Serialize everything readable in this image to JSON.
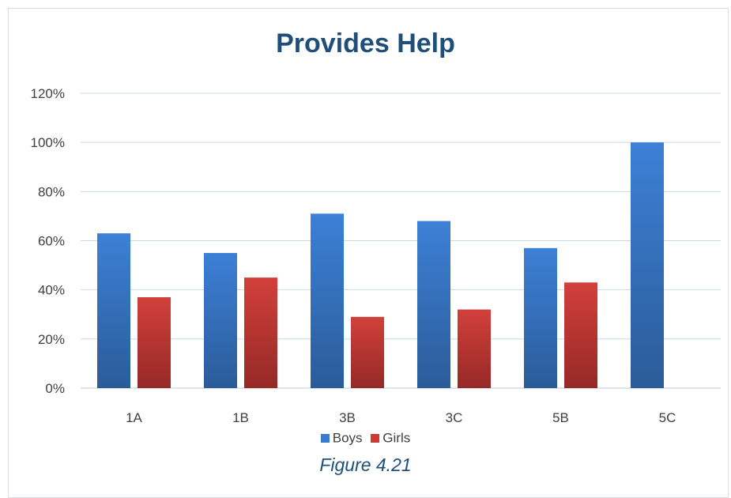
{
  "chart_data": {
    "type": "bar",
    "title": "Provides Help",
    "categories": [
      "1A",
      "1B",
      "3B",
      "3C",
      "5B",
      "5C"
    ],
    "series": [
      {
        "name": "Boys",
        "values": [
          63,
          55,
          71,
          68,
          57,
          100
        ],
        "color": "#3a7bd0"
      },
      {
        "name": "Girls",
        "values": [
          37,
          45,
          29,
          32,
          43,
          0
        ],
        "color": "#cc3a36"
      }
    ],
    "y_ticks": [
      "0%",
      "20%",
      "40%",
      "60%",
      "80%",
      "100%",
      "120%"
    ],
    "ylim": [
      0,
      120
    ],
    "grid": true,
    "legend_position": "bottom",
    "xlabel": "",
    "ylabel": ""
  },
  "caption": "Figure 4.21"
}
